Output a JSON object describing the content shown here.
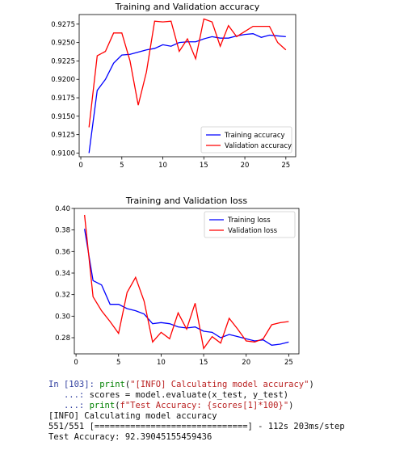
{
  "chart_data": [
    {
      "type": "line",
      "title": "Training and Validation accuracy",
      "xlabel": "",
      "ylabel": "",
      "xlim": [
        -0.2,
        26.2
      ],
      "ylim": [
        0.9095,
        0.9288
      ],
      "xticks": [
        0,
        5,
        10,
        15,
        20,
        25
      ],
      "yticks": [
        0.91,
        0.9125,
        0.915,
        0.9175,
        0.92,
        0.9225,
        0.925,
        0.9275
      ],
      "ytick_labels": [
        "0.9100",
        "0.9125",
        "0.9150",
        "0.9175",
        "0.9200",
        "0.9225",
        "0.9250",
        "0.9275"
      ],
      "legend_position": "lower-right",
      "grid": false,
      "x": [
        1,
        2,
        3,
        4,
        5,
        6,
        7,
        8,
        9,
        10,
        11,
        12,
        13,
        14,
        15,
        16,
        17,
        18,
        19,
        20,
        21,
        22,
        23,
        24,
        25
      ],
      "series": [
        {
          "name": "Training accuracy",
          "color": "#0000ff",
          "values": [
            0.91,
            0.9185,
            0.92,
            0.9222,
            0.9233,
            0.9234,
            0.9237,
            0.924,
            0.9242,
            0.9247,
            0.9245,
            0.925,
            0.9251,
            0.9251,
            0.9255,
            0.9258,
            0.9256,
            0.9256,
            0.9259,
            0.9261,
            0.9262,
            0.9257,
            0.926,
            0.9259,
            0.9258
          ]
        },
        {
          "name": "Validation accuracy",
          "color": "#ff0000",
          "values": [
            0.9135,
            0.9232,
            0.9238,
            0.9263,
            0.9263,
            0.9225,
            0.9165,
            0.921,
            0.9279,
            0.9278,
            0.9279,
            0.9238,
            0.9255,
            0.9228,
            0.9282,
            0.9278,
            0.9245,
            0.9273,
            0.9258,
            0.9265,
            0.9272,
            0.9272,
            0.9272,
            0.925,
            0.924
          ]
        }
      ]
    },
    {
      "type": "line",
      "title": "Training and Validation loss",
      "xlabel": "",
      "ylabel": "",
      "xlim": [
        -0.2,
        26.2
      ],
      "ylim": [
        0.265,
        0.4
      ],
      "xticks": [
        0,
        5,
        10,
        15,
        20,
        25
      ],
      "yticks": [
        0.28,
        0.3,
        0.32,
        0.34,
        0.36,
        0.38,
        0.4
      ],
      "ytick_labels": [
        "0.28",
        "0.30",
        "0.32",
        "0.34",
        "0.36",
        "0.38",
        "0.40"
      ],
      "legend_position": "upper-right",
      "grid": false,
      "x": [
        1,
        2,
        3,
        4,
        5,
        6,
        7,
        8,
        9,
        10,
        11,
        12,
        13,
        14,
        15,
        16,
        17,
        18,
        19,
        20,
        21,
        22,
        23,
        24,
        25
      ],
      "series": [
        {
          "name": "Training loss",
          "color": "#0000ff",
          "values": [
            0.381,
            0.333,
            0.329,
            0.311,
            0.311,
            0.307,
            0.305,
            0.302,
            0.293,
            0.294,
            0.293,
            0.29,
            0.289,
            0.29,
            0.286,
            0.285,
            0.28,
            0.283,
            0.281,
            0.279,
            0.277,
            0.278,
            0.273,
            0.274,
            0.276
          ]
        },
        {
          "name": "Validation loss",
          "color": "#ff0000",
          "values": [
            0.394,
            0.318,
            0.305,
            0.295,
            0.284,
            0.322,
            0.336,
            0.314,
            0.276,
            0.285,
            0.279,
            0.303,
            0.288,
            0.312,
            0.27,
            0.281,
            0.275,
            0.298,
            0.288,
            0.277,
            0.276,
            0.279,
            0.292,
            0.294,
            0.295
          ]
        }
      ]
    }
  ],
  "console": {
    "prompt_in": "In [103]:",
    "prompt_cont": "   ...:",
    "line1_fn": "print",
    "line1_str": "\"[INFO] Calculating model accuracy\"",
    "line2_code": "scores = model.evaluate(x_test, y_test)",
    "line3_fn": "print",
    "line3_str": "f\"Test Accuracy: {scores[1]*100}\"",
    "out1": "[INFO] Calculating model accuracy",
    "out2": "551/551 [==============================] - 112s 203ms/step",
    "out3": "Test Accuracy: 92.39045155459436"
  }
}
